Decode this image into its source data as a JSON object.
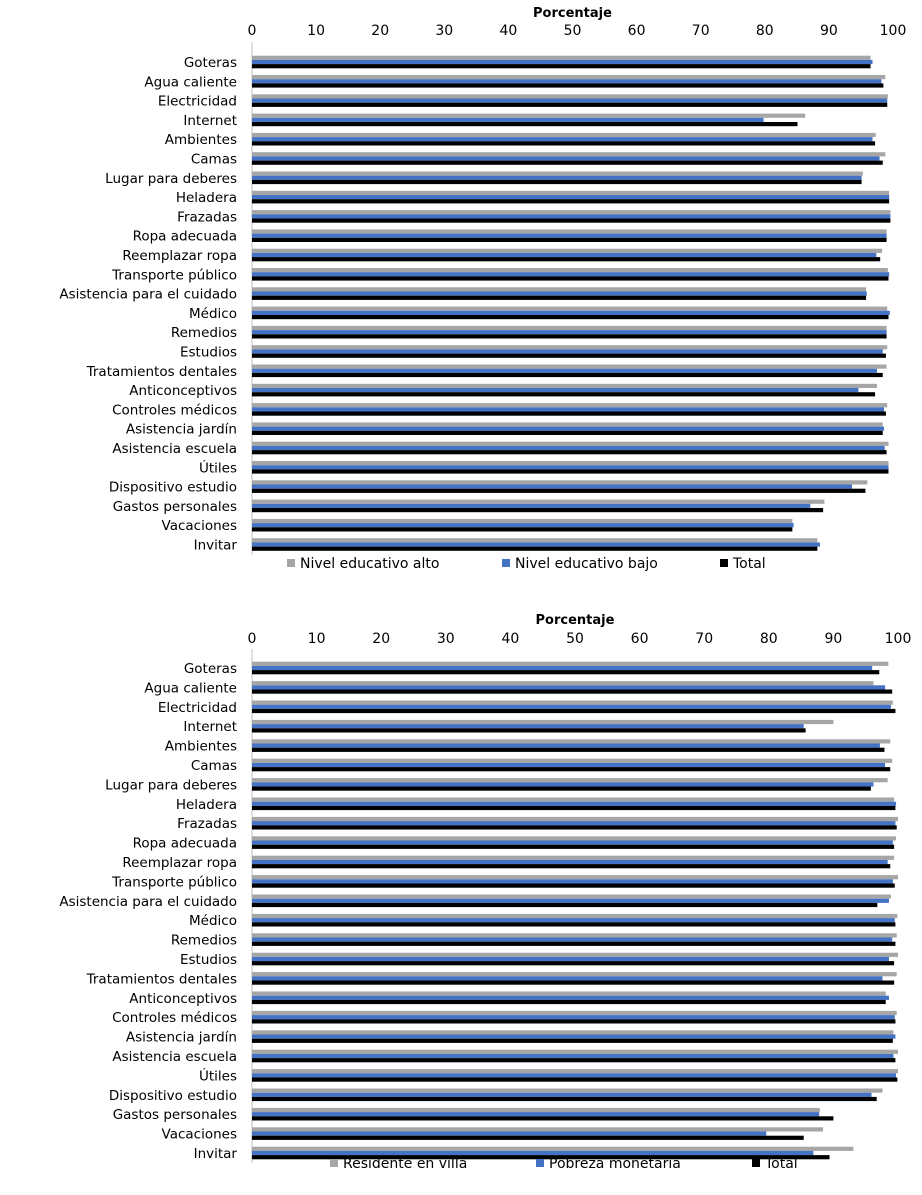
{
  "chart_data": [
    {
      "type": "bar",
      "orientation": "horizontal",
      "xlabel": "Porcentaje",
      "xlim": [
        0,
        100
      ],
      "xticks": [
        "0",
        "10",
        "20",
        "30",
        "40",
        "50",
        "60",
        "70",
        "80",
        "90",
        "100"
      ],
      "legend_position": "bottom",
      "categories": [
        "Goteras",
        "Agua caliente",
        "Electricidad",
        "Internet",
        "Ambientes",
        "Camas",
        "Lugar para deberes",
        "Heladera",
        "Frazadas",
        "Ropa adecuada",
        "Reemplazar ropa",
        "Transporte público",
        "Asistencia para el cuidado",
        "Médico",
        "Remedios",
        "Estudios",
        "Tratamientos dentales",
        "Anticonceptivos",
        "Controles médicos",
        "Asistencia jardín",
        "Asistencia escuela",
        "Útiles",
        "Dispositivo estudio",
        "Gastos personales",
        "Vacaciones",
        "Invitar"
      ],
      "series": [
        {
          "name": "Nivel educativo alto",
          "color": "#a6a6a6",
          "values": [
            96.5,
            98.8,
            99.2,
            86.3,
            97.3,
            98.8,
            95.3,
            99.4,
            99.6,
            99.0,
            98.3,
            99.2,
            95.8,
            99.1,
            99.0,
            99.1,
            99.0,
            97.5,
            99.1,
            98.4,
            99.3,
            99.3,
            96.0,
            89.3,
            84.3,
            88.2
          ]
        },
        {
          "name": "Nivel educativo bajo",
          "color": "#4472c4",
          "values": [
            96.8,
            98.2,
            99.1,
            79.8,
            96.8,
            97.9,
            95.1,
            99.4,
            99.6,
            99.0,
            97.4,
            99.4,
            95.9,
            99.5,
            99.0,
            98.4,
            97.5,
            94.6,
            98.6,
            98.6,
            98.7,
            99.3,
            93.6,
            87.1,
            84.5,
            88.6
          ]
        },
        {
          "name": "Total",
          "color": "#000000",
          "values": [
            96.5,
            98.5,
            99.1,
            85.1,
            97.2,
            98.4,
            95.1,
            99.4,
            99.6,
            99.0,
            98.0,
            99.3,
            95.8,
            99.3,
            99.0,
            98.9,
            98.4,
            97.2,
            98.9,
            98.4,
            99.0,
            99.3,
            95.7,
            89.1,
            84.3,
            88.2
          ]
        }
      ]
    },
    {
      "type": "bar",
      "orientation": "horizontal",
      "xlabel": "Porcentaje",
      "xlim": [
        0,
        100
      ],
      "xticks": [
        "0",
        "10",
        "20",
        "30",
        "40",
        "50",
        "60",
        "70",
        "80",
        "90",
        "100"
      ],
      "legend_position": "bottom",
      "categories": [
        "Goteras",
        "Agua caliente",
        "Electricidad",
        "Internet",
        "Ambientes",
        "Camas",
        "Lugar para deberes",
        "Heladera",
        "Frazadas",
        "Ropa adecuada",
        "Reemplazar ropa",
        "Transporte público",
        "Asistencia para el cuidado",
        "Médico",
        "Remedios",
        "Estudios",
        "Tratamientos dentales",
        "Anticonceptivos",
        "Controles médicos",
        "Asistencia jardín",
        "Asistencia escuela",
        "Útiles",
        "Dispositivo estudio",
        "Gastos personales",
        "Vacaciones",
        "Invitar"
      ],
      "series": [
        {
          "name": "Residente en villa",
          "color": "#a6a6a6",
          "values": [
            98.5,
            96.2,
            99.2,
            90.0,
            98.8,
            99.1,
            98.4,
            99.4,
            100.0,
            99.7,
            99.4,
            100.0,
            98.9,
            99.9,
            99.8,
            100.0,
            99.8,
            98.1,
            99.8,
            99.3,
            100.0,
            100.0,
            97.6,
            87.9,
            88.4,
            93.1
          ]
        },
        {
          "name": "Pobreza monetaria",
          "color": "#4472c4",
          "values": [
            96.0,
            98.0,
            98.9,
            85.4,
            97.2,
            98.0,
            96.2,
            99.7,
            99.6,
            99.2,
            98.4,
            99.2,
            98.6,
            99.5,
            99.1,
            98.6,
            97.6,
            98.6,
            99.5,
            99.6,
            99.3,
            99.7,
            95.9,
            87.8,
            79.6,
            86.9
          ]
        },
        {
          "name": "Total",
          "color": "#000000",
          "values": [
            97.1,
            99.1,
            99.6,
            85.7,
            97.9,
            98.8,
            95.8,
            99.6,
            99.8,
            99.4,
            98.8,
            99.5,
            96.8,
            99.6,
            99.6,
            99.4,
            99.4,
            98.1,
            99.6,
            99.2,
            99.6,
            99.9,
            96.7,
            90.0,
            85.4,
            89.4
          ]
        }
      ]
    }
  ]
}
